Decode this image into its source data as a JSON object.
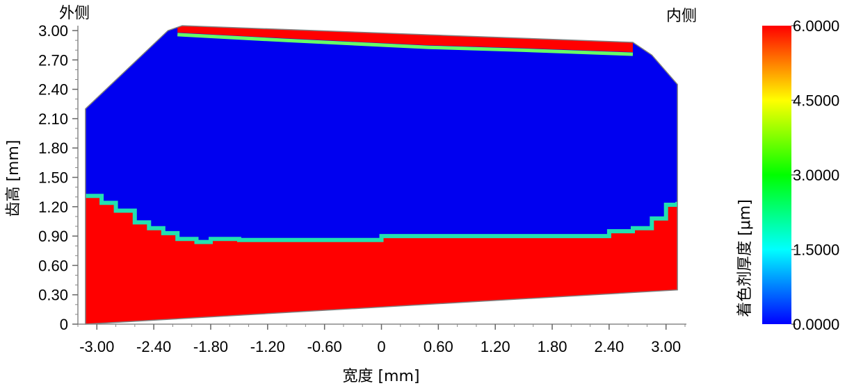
{
  "chart_data": {
    "type": "heatmap",
    "xlabel": "宽度 [mm]",
    "ylabel": "齿高 [mm]",
    "corner_labels": {
      "left": "外侧",
      "right": "内侧"
    },
    "xlim": [
      -3.2,
      3.2
    ],
    "ylim": [
      0,
      3.05
    ],
    "x_ticks": [
      -3.0,
      -2.4,
      -1.8,
      -1.2,
      -0.6,
      0,
      0.6,
      1.2,
      1.8,
      2.4,
      3.0
    ],
    "x_tick_labels": [
      "-3.00",
      "-2.40",
      "-1.80",
      "-1.20",
      "-0.60",
      "0",
      "0.60",
      "1.20",
      "1.80",
      "2.40",
      "3.00"
    ],
    "y_ticks": [
      0,
      0.3,
      0.6,
      0.9,
      1.2,
      1.5,
      1.8,
      2.1,
      2.4,
      2.7,
      3.0
    ],
    "y_tick_labels": [
      "0",
      "0.30",
      "0.60",
      "0.90",
      "1.20",
      "1.50",
      "1.80",
      "2.10",
      "2.40",
      "2.70",
      "3.00"
    ],
    "colorbar": {
      "label": "着色剂厚度 [μm]",
      "range": [
        0,
        6
      ],
      "ticks": [
        6,
        4.5,
        3,
        1.5,
        0
      ],
      "tick_labels": [
        "6.0000",
        "4.5000",
        "3.0000",
        "1.5000",
        "0.0000"
      ],
      "colormap": [
        "#0000ff",
        "#00ffff",
        "#00ff00",
        "#ffff00",
        "#ff0000"
      ]
    },
    "tooth_outline": [
      [
        -3.12,
        0.0
      ],
      [
        -3.12,
        2.2
      ],
      [
        -2.25,
        3.0
      ],
      [
        -2.1,
        3.05
      ],
      [
        2.65,
        2.88
      ],
      [
        2.85,
        2.75
      ],
      [
        3.12,
        2.45
      ],
      [
        3.12,
        0.35
      ]
    ],
    "contact_pattern_boundary": {
      "lower": [
        [
          -3.12,
          1.31
        ],
        [
          -2.95,
          1.24
        ],
        [
          -2.8,
          1.16
        ],
        [
          -2.6,
          1.04
        ],
        [
          -2.45,
          0.98
        ],
        [
          -2.3,
          0.93
        ],
        [
          -2.15,
          0.87
        ],
        [
          -1.95,
          0.84
        ],
        [
          -1.8,
          0.87
        ],
        [
          -1.5,
          0.86
        ],
        [
          0.0,
          0.9
        ],
        [
          2.4,
          0.95
        ],
        [
          2.65,
          0.98
        ],
        [
          2.85,
          1.08
        ],
        [
          3.0,
          1.22
        ],
        [
          3.12,
          1.25
        ]
      ],
      "upper": [
        [
          -2.15,
          2.98
        ],
        [
          -1.0,
          2.92
        ],
        [
          0.5,
          2.85
        ],
        [
          1.5,
          2.82
        ],
        [
          2.65,
          2.78
        ]
      ]
    },
    "values_inside_contact": 0.0,
    "values_outside_contact": 6.0
  }
}
